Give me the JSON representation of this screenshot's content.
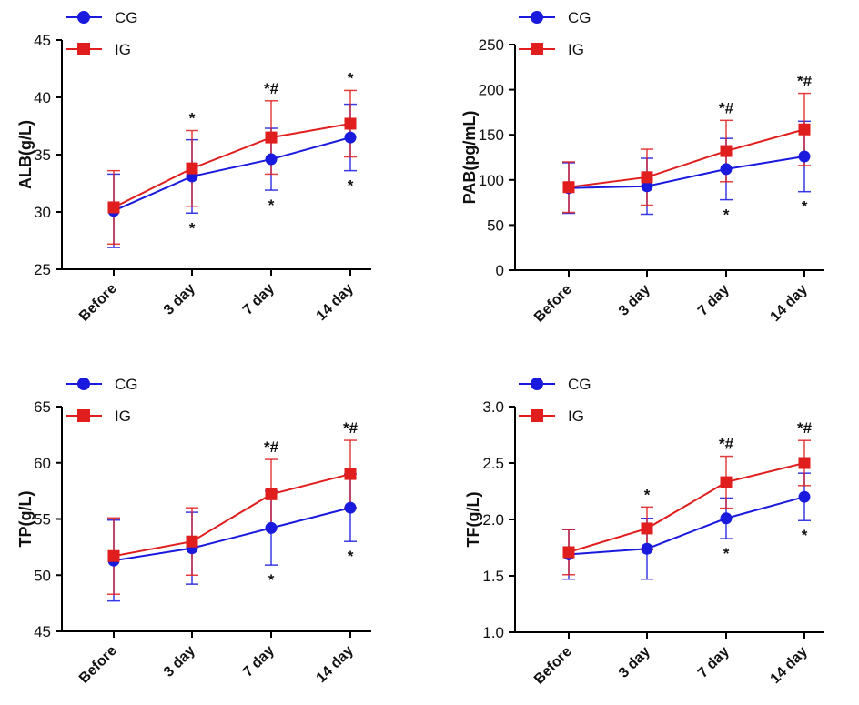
{
  "colors": {
    "cg": "#1a1adf",
    "ig": "#e01e1e",
    "axis": "#000000"
  },
  "legend": {
    "cg_label": "CG",
    "ig_label": "IG"
  },
  "chart_data": [
    {
      "type": "line",
      "ylabel": "ALB(g/L)",
      "categories": [
        "Before",
        "3 day",
        "7 day",
        "14 day"
      ],
      "ylim": [
        25,
        45
      ],
      "yticks": [
        25,
        30,
        35,
        40,
        45
      ],
      "series": [
        {
          "name": "CG",
          "values": [
            30.1,
            33.1,
            34.6,
            36.5
          ],
          "errors": [
            3.2,
            3.2,
            2.7,
            2.9
          ]
        },
        {
          "name": "IG",
          "values": [
            30.4,
            33.8,
            36.5,
            37.7
          ],
          "errors": [
            3.2,
            3.3,
            3.2,
            2.9
          ]
        }
      ],
      "annotations": [
        {
          "index": 1,
          "series": "IG",
          "text": "*"
        },
        {
          "index": 2,
          "series": "IG",
          "text": "*#"
        },
        {
          "index": 3,
          "series": "IG",
          "text": "*"
        },
        {
          "index": 1,
          "series": "CG",
          "text": "*"
        },
        {
          "index": 2,
          "series": "CG",
          "text": "*"
        },
        {
          "index": 3,
          "series": "CG",
          "text": "*"
        }
      ]
    },
    {
      "type": "line",
      "ylabel": "PAB(pg/mL)",
      "categories": [
        "Before",
        "3 day",
        "7 day",
        "14 day"
      ],
      "ylim": [
        0,
        250
      ],
      "yticks": [
        0,
        50,
        100,
        150,
        200,
        250
      ],
      "series": [
        {
          "name": "CG",
          "values": [
            91,
            93,
            112,
            126
          ],
          "errors": [
            28,
            31,
            34,
            39
          ]
        },
        {
          "name": "IG",
          "values": [
            92,
            103,
            132,
            156
          ],
          "errors": [
            28,
            31,
            34,
            40
          ]
        }
      ],
      "annotations": [
        {
          "index": 2,
          "series": "IG",
          "text": "*#"
        },
        {
          "index": 3,
          "series": "IG",
          "text": "*#"
        },
        {
          "index": 2,
          "series": "CG",
          "text": "*"
        },
        {
          "index": 3,
          "series": "CG",
          "text": "*"
        }
      ]
    },
    {
      "type": "line",
      "ylabel": "TP(g/L)",
      "categories": [
        "Before",
        "3 day",
        "7 day",
        "14 day"
      ],
      "ylim": [
        45,
        65
      ],
      "yticks": [
        45,
        50,
        55,
        60,
        65
      ],
      "series": [
        {
          "name": "CG",
          "values": [
            51.3,
            52.4,
            54.2,
            56.0
          ],
          "errors": [
            3.6,
            3.2,
            3.3,
            3.0
          ]
        },
        {
          "name": "IG",
          "values": [
            51.7,
            53.0,
            57.2,
            59.0
          ],
          "errors": [
            3.4,
            3.0,
            3.1,
            3.0
          ]
        }
      ],
      "annotations": [
        {
          "index": 2,
          "series": "IG",
          "text": "*#"
        },
        {
          "index": 3,
          "series": "IG",
          "text": "*#"
        },
        {
          "index": 2,
          "series": "CG",
          "text": "*"
        },
        {
          "index": 3,
          "series": "CG",
          "text": "*"
        }
      ]
    },
    {
      "type": "line",
      "ylabel": "TF(g/L)",
      "categories": [
        "Before",
        "3 day",
        "7 day",
        "14 day"
      ],
      "ylim": [
        1.0,
        3.0
      ],
      "yticks": [
        1.0,
        1.5,
        2.0,
        2.5,
        3.0
      ],
      "series": [
        {
          "name": "CG",
          "values": [
            1.69,
            1.74,
            2.01,
            2.2
          ],
          "errors": [
            0.22,
            0.27,
            0.18,
            0.21
          ]
        },
        {
          "name": "IG",
          "values": [
            1.71,
            1.92,
            2.33,
            2.5
          ],
          "errors": [
            0.2,
            0.19,
            0.23,
            0.2
          ]
        }
      ],
      "annotations": [
        {
          "index": 1,
          "series": "IG",
          "text": "*"
        },
        {
          "index": 2,
          "series": "IG",
          "text": "*#"
        },
        {
          "index": 3,
          "series": "IG",
          "text": "*#"
        },
        {
          "index": 2,
          "series": "CG",
          "text": "*"
        },
        {
          "index": 3,
          "series": "CG",
          "text": "*"
        }
      ]
    }
  ]
}
